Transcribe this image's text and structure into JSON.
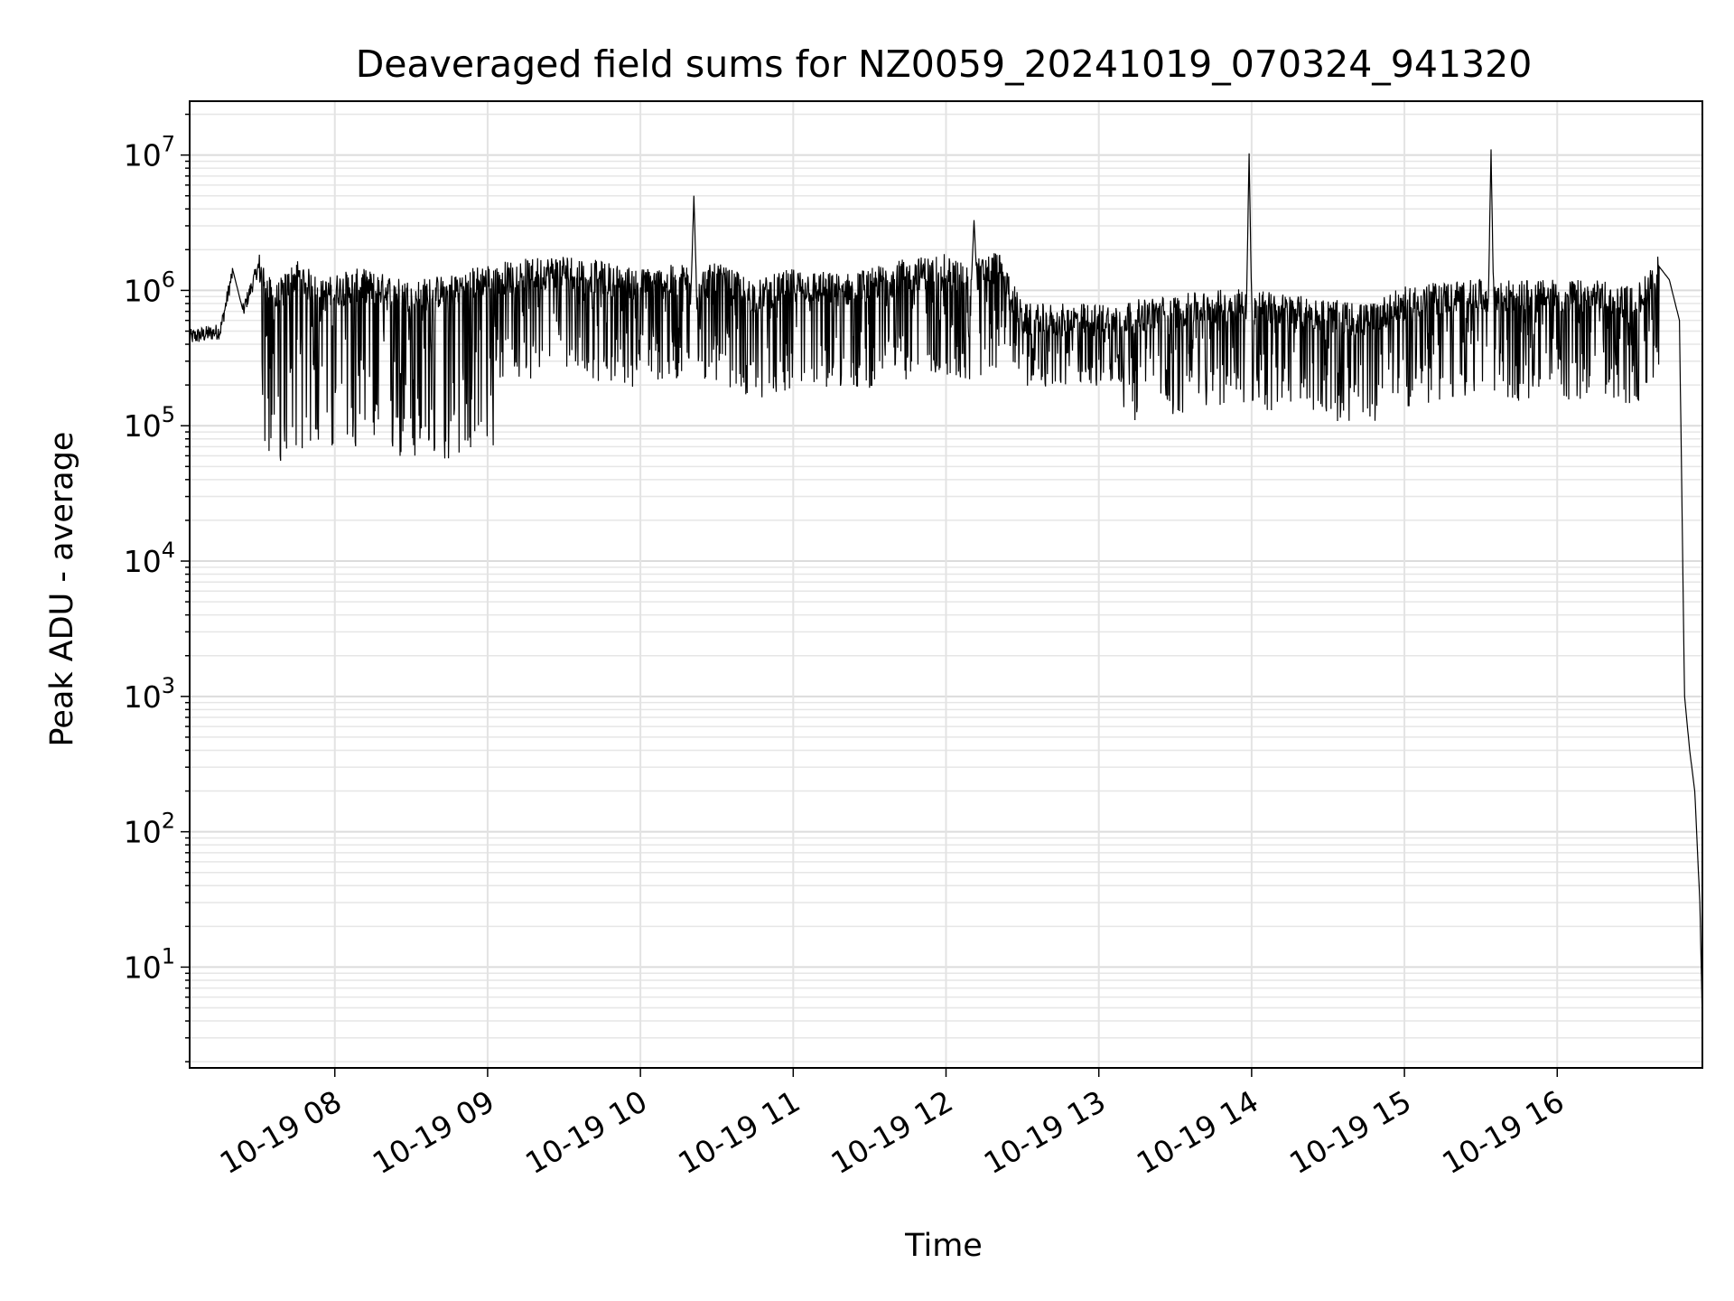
{
  "chart_data": {
    "type": "line",
    "title": "Deaveraged field sums for NZ0059_20241019_070324_941320",
    "xlabel": "Time",
    "ylabel": "Peak ADU - average",
    "y_scale": "log",
    "ylim": [
      1.8,
      25000000
    ],
    "xlim": [
      "2024-10-19T07:03",
      "2024-10-19T16:57"
    ],
    "x_tick_labels": [
      "10-19 08",
      "10-19 09",
      "10-19 10",
      "10-19 11",
      "10-19 12",
      "10-19 13",
      "10-19 14",
      "10-19 15",
      "10-19 16"
    ],
    "y_tick_labels": [
      {
        "base": "10",
        "exp": "1"
      },
      {
        "base": "10",
        "exp": "2"
      },
      {
        "base": "10",
        "exp": "3"
      },
      {
        "base": "10",
        "exp": "4"
      },
      {
        "base": "10",
        "exp": "5"
      },
      {
        "base": "10",
        "exp": "6"
      },
      {
        "base": "10",
        "exp": "7"
      }
    ],
    "grid": true,
    "line_color": "#000000",
    "series": [
      {
        "x": [
          "2024-10-19T07:03",
          "2024-10-19T07:15",
          "2024-10-19T07:20",
          "2024-10-19T07:24",
          "2024-10-19T07:30",
          "2024-10-19T07:36",
          "2024-10-19T07:45",
          "2024-10-19T07:55",
          "2024-10-19T08:00",
          "2024-10-19T08:10",
          "2024-10-19T08:30",
          "2024-10-19T08:45",
          "2024-10-19T09:00",
          "2024-10-19T09:30",
          "2024-10-19T10:00",
          "2024-10-19T10:20",
          "2024-10-19T10:21",
          "2024-10-19T10:22",
          "2024-10-19T10:30",
          "2024-10-19T10:45",
          "2024-10-19T11:00",
          "2024-10-19T11:20",
          "2024-10-19T11:45",
          "2024-10-19T12:00",
          "2024-10-19T12:10",
          "2024-10-19T12:11",
          "2024-10-19T12:12",
          "2024-10-19T12:20",
          "2024-10-19T12:25",
          "2024-10-19T12:30",
          "2024-10-19T13:00",
          "2024-10-19T13:30",
          "2024-10-19T13:58",
          "2024-10-19T13:59",
          "2024-10-19T14:00",
          "2024-10-19T14:15",
          "2024-10-19T14:45",
          "2024-10-19T15:00",
          "2024-10-19T15:20",
          "2024-10-19T15:33",
          "2024-10-19T15:34",
          "2024-10-19T15:35",
          "2024-10-19T15:45",
          "2024-10-19T16:00",
          "2024-10-19T16:15",
          "2024-10-19T16:30",
          "2024-10-19T16:35",
          "2024-10-19T16:40",
          "2024-10-19T16:44",
          "2024-10-19T16:48",
          "2024-10-19T16:50",
          "2024-10-19T16:52",
          "2024-10-19T16:54",
          "2024-10-19T16:56",
          "2024-10-19T16:57"
        ],
        "y": [
          450000,
          500000,
          1400000,
          700000,
          1500000,
          800000,
          1300000,
          900000,
          1000000,
          1100000,
          900000,
          1000000,
          1200000,
          1400000,
          1100000,
          1200000,
          5000000,
          1100000,
          1200000,
          900000,
          1100000,
          1000000,
          1300000,
          1400000,
          1200000,
          3300000,
          1300000,
          1500000,
          1000000,
          600000,
          600000,
          700000,
          800000,
          10300000,
          800000,
          700000,
          600000,
          800000,
          900000,
          900000,
          11000000,
          900000,
          900000,
          900000,
          900000,
          800000,
          1000000,
          1500000,
          1200000,
          600000,
          1000,
          400,
          200,
          30,
          4
        ]
      }
    ]
  }
}
